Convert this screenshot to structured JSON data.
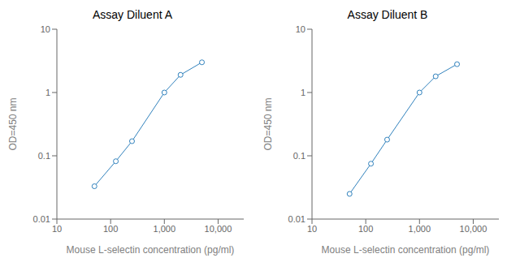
{
  "chart_data": [
    {
      "type": "line",
      "title": "Assay Diluent A",
      "x": [
        50,
        125,
        250,
        1000,
        2000,
        5000
      ],
      "values": [
        0.033,
        0.082,
        0.17,
        1.0,
        1.9,
        3.0
      ],
      "marker": "o",
      "xlabel": "Mouse L-selectin concentration (pg/ml)",
      "ylabel": "OD=450 nm",
      "log": true,
      "grid": false,
      "xlim": [
        10,
        30000
      ],
      "xticks": [
        10,
        100,
        {
          "value": 1000,
          "label": "1,000"
        },
        {
          "value": 10000,
          "label": "10,000"
        }
      ],
      "ylim": [
        0.01,
        10
      ],
      "yticks": [
        0.01,
        0.1,
        1,
        10
      ]
    },
    {
      "type": "line",
      "title": "Assay Diluent B",
      "x": [
        50,
        125,
        250,
        1000,
        2000,
        5000
      ],
      "values": [
        0.025,
        0.075,
        0.18,
        1.0,
        1.8,
        2.8
      ],
      "marker": "o",
      "xlabel": "Mouse L-selectin concentration (pg/ml)",
      "ylabel": "OD=450 nm",
      "log": true,
      "grid": false,
      "xlim": [
        10,
        30000
      ],
      "xticks": [
        10,
        100,
        {
          "value": 1000,
          "label": "1,000"
        },
        {
          "value": 10000,
          "label": "10,000"
        }
      ],
      "ylim": [
        0.01,
        10
      ],
      "yticks": [
        0.01,
        0.1,
        1,
        10
      ]
    }
  ]
}
